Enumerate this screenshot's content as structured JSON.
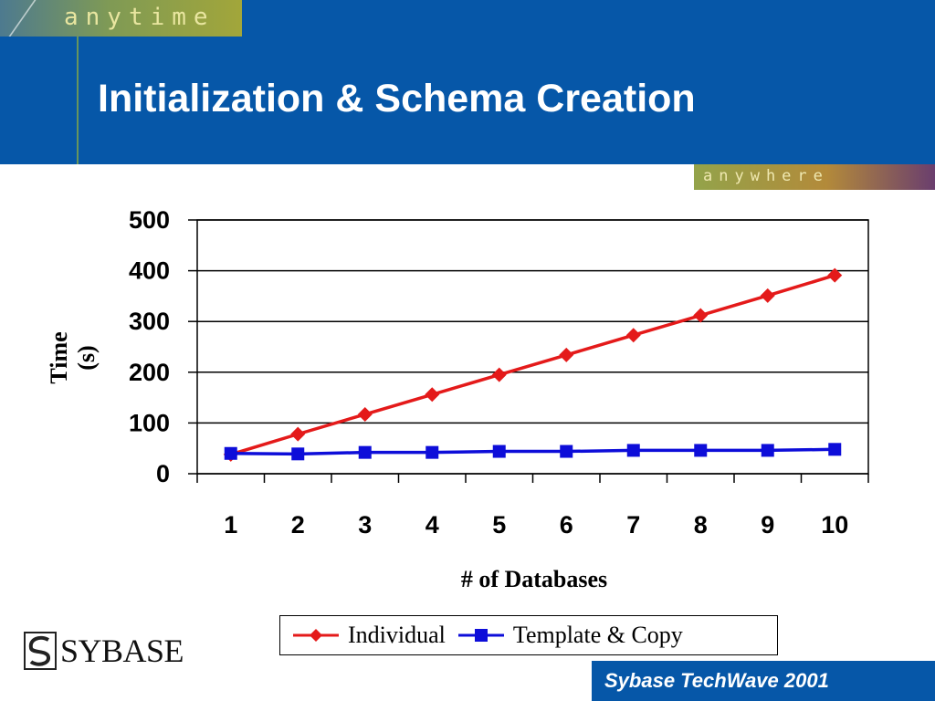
{
  "slide": {
    "title": "Initialization & Schema Creation",
    "banner_top_text": "anytime",
    "banner_right_text": "anywhere",
    "logo_text": "SYBASE",
    "footer_text": "Sybase TechWave 2001",
    "colors": {
      "header": "#0657a8",
      "individual": "#e41a1a",
      "template_copy": "#0d0dd9"
    },
    "icons": [
      "sybase-logo-icon"
    ]
  },
  "chart_data": {
    "type": "line",
    "title": "",
    "xlabel": "# of Databases",
    "ylabel": "Time (s)",
    "x": [
      1,
      2,
      3,
      4,
      5,
      6,
      7,
      8,
      9,
      10
    ],
    "ylim": [
      0,
      500
    ],
    "yticks": [
      0,
      100,
      200,
      300,
      400,
      500
    ],
    "grid": "horizontal",
    "legend_position": "bottom",
    "series": [
      {
        "name": "Individual",
        "marker": "diamond",
        "color": "#e41a1a",
        "values": [
          38,
          78,
          117,
          156,
          195,
          234,
          273,
          312,
          351,
          391
        ]
      },
      {
        "name": "Template & Copy",
        "marker": "square",
        "color": "#0d0dd9",
        "values": [
          40,
          39,
          42,
          42,
          44,
          44,
          46,
          46,
          46,
          48
        ]
      }
    ]
  }
}
